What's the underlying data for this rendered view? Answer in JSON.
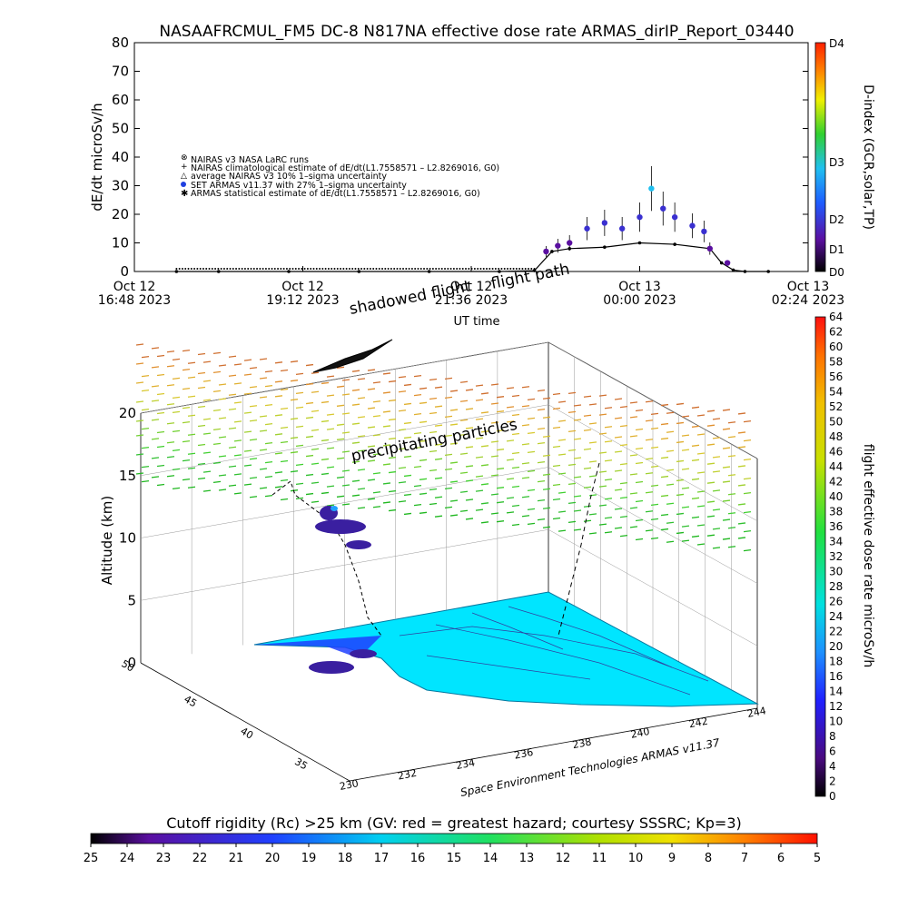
{
  "header": {
    "title": "NASAAFRCMUL_FM5 DC-8    N817NA effective dose rate ARMAS_dirIP_Report_03440"
  },
  "time_panel": {
    "ylabel": "dE/dt microSv/h",
    "xlabel": "UT time",
    "yticks": [
      "0",
      "10",
      "20",
      "30",
      "40",
      "50",
      "60",
      "70",
      "80"
    ],
    "xticks": [
      {
        "day": "Oct 12",
        "time": "16:48 2023"
      },
      {
        "day": "Oct 12",
        "time": "19:12 2023"
      },
      {
        "day": "Oct 12",
        "time": "21:36 2023"
      },
      {
        "day": "Oct 13",
        "time": "00:00 2023"
      },
      {
        "day": "Oct 13",
        "time": "02:24 2023"
      }
    ],
    "legend": [
      "NAIRAS v3 NASA LaRC runs",
      "NAIRAS climatological estimate of dE/dt(L1.7558571 – L2.8269016, G0)",
      "average NAIRAS v3 10% 1–sigma uncertainty",
      "SET ARMAS v11.37 with 27% 1–sigma uncertainty",
      "ARMAS statistical estimate of dE/dt(L1.7558571 – L2.8269016, G0)"
    ],
    "overlay_text": "flight path",
    "colorbar": {
      "label": "D-index (GCR,solar,TP)",
      "ticks": [
        "D0",
        "D1",
        "D2",
        "D3",
        "D4"
      ],
      "colors": [
        "#000000",
        "#5a0fa0",
        "#1e5cff",
        "#20c0f0",
        "#30d030",
        "#f0f000",
        "#ff8000",
        "#ff2000"
      ]
    }
  },
  "panel_3d": {
    "zlabel": "Altitude (km)",
    "zticks": [
      "0",
      "5",
      "10",
      "15",
      "20"
    ],
    "lat_ticks": [
      "35",
      "40",
      "45",
      "50"
    ],
    "lon_ticks": [
      "230",
      "232",
      "234",
      "236",
      "238",
      "240",
      "242",
      "244"
    ],
    "annotations": {
      "shadowed": "shadowed flight",
      "precip": "precipitating particles"
    },
    "credit": "Space Environment Technologies ARMAS v11.37",
    "colorbar": {
      "label": "flight effective dose rate microSv/h",
      "ticks": [
        "0",
        "2",
        "4",
        "6",
        "8",
        "10",
        "12",
        "14",
        "16",
        "18",
        "20",
        "22",
        "24",
        "26",
        "28",
        "30",
        "32",
        "34",
        "36",
        "38",
        "40",
        "42",
        "44",
        "46",
        "48",
        "50",
        "52",
        "54",
        "56",
        "58",
        "60",
        "62",
        "64"
      ]
    }
  },
  "bottom_bar": {
    "title": "Cutoff rigidity (Rc) >25 km (GV: red = greatest hazard; courtesy SSSRC; Kp=3)",
    "ticks": [
      "25",
      "24",
      "23",
      "22",
      "21",
      "20",
      "19",
      "18",
      "17",
      "16",
      "15",
      "14",
      "13",
      "12",
      "11",
      "10",
      "9",
      "8",
      "7",
      "6",
      "5"
    ]
  },
  "chart_data": {
    "type": "scatter",
    "title": "NASAAFRCMUL_FM5 DC-8    N817NA effective dose rate ARMAS_dirIP_Report_03440",
    "xlabel": "UT time",
    "ylabel": "dE/dt microSv/h",
    "ylim": [
      0,
      80
    ],
    "xrange_hours": [
      "Oct 12 16:48 2023",
      "Oct 13 02:24 2023"
    ],
    "series": [
      {
        "name": "NAIRAS climatological estimate of dE/dt(L1.7558571 – L2.8269016, G0)",
        "x": [
          "17:24",
          "18:00",
          "19:00",
          "20:00",
          "21:00",
          "22:00",
          "22:30",
          "22:45",
          "23:00",
          "23:30",
          "00:00",
          "00:30",
          "01:00",
          "01:10",
          "01:20",
          "01:30",
          "01:50"
        ],
        "values": [
          0,
          0,
          0,
          0,
          0,
          0,
          0.3,
          7,
          8,
          8.5,
          10,
          9.5,
          8,
          3,
          0.5,
          0,
          0
        ]
      },
      {
        "name": "SET ARMAS v11.37 with 27% 1–sigma uncertainty",
        "x": [
          "22:40",
          "22:50",
          "23:00",
          "23:15",
          "23:30",
          "23:45",
          "00:00",
          "00:10",
          "00:20",
          "00:30",
          "00:45",
          "00:55",
          "01:00",
          "01:15"
        ],
        "values": [
          7,
          9,
          10,
          15,
          17,
          15,
          19,
          29,
          22,
          19,
          16,
          14,
          8,
          3
        ]
      }
    ]
  }
}
